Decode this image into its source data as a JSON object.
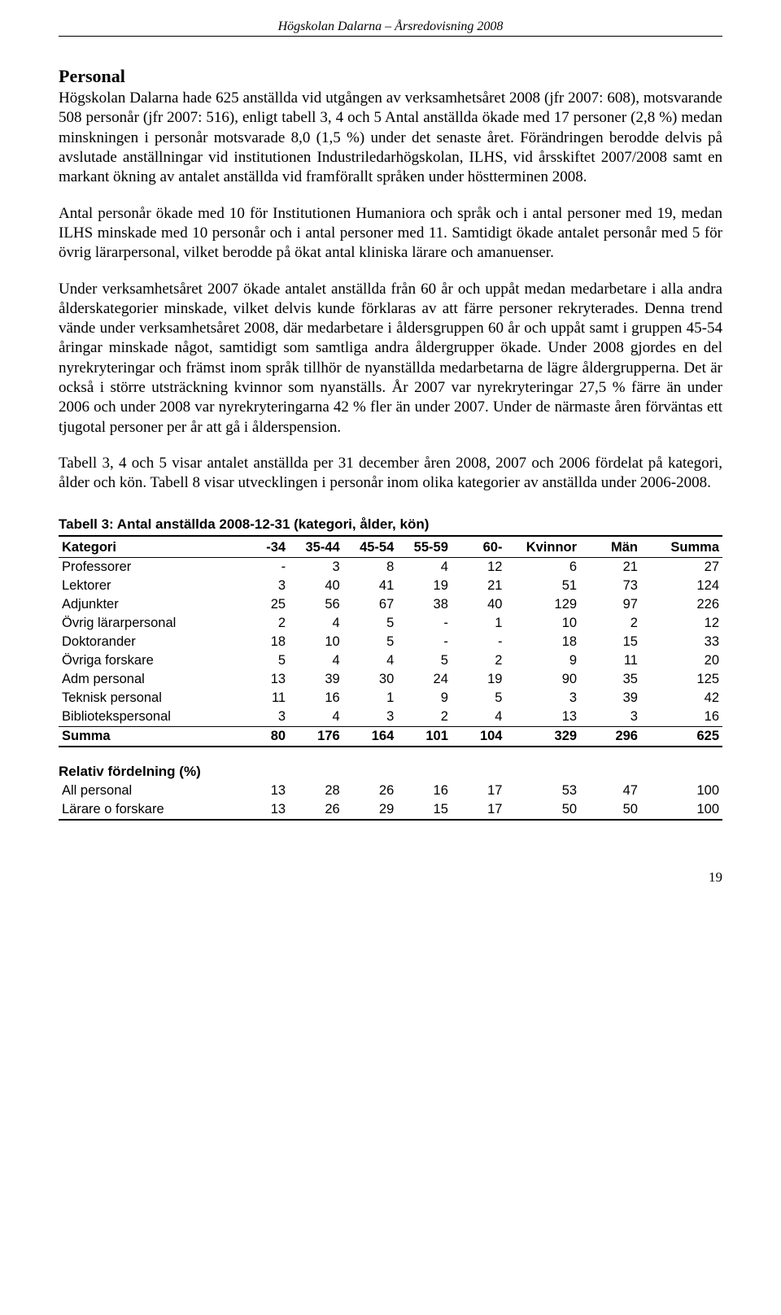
{
  "header": {
    "running": "Högskolan Dalarna – Årsredovisning 2008"
  },
  "section": {
    "heading": "Personal",
    "para1": "Högskolan Dalarna hade 625 anställda vid utgången av verksamhetsåret 2008 (jfr 2007: 608), motsvarande 508 personår (jfr 2007: 516), enligt tabell 3, 4 och 5 Antal anställda ökade med 17 personer (2,8 %) medan minskningen i personår motsvarade 8,0 (1,5 %) under det senaste året. Förändringen berodde delvis på avslutade anställningar vid institutionen Industriledarhögskolan, ILHS, vid årsskiftet 2007/2008 samt en markant ökning av antalet anställda vid framförallt språken under höstterminen 2008.",
    "para2": "Antal personår ökade med 10 för Institutionen Humaniora och språk och i antal personer med 19, medan ILHS minskade med 10 personår och i antal personer med 11. Samtidigt ökade antalet personår med 5 för övrig lärarpersonal, vilket berodde på ökat antal kliniska lärare och amanuenser.",
    "para3": "Under verksamhetsåret 2007 ökade antalet anställda från 60 år och uppåt medan medarbetare i alla andra ålderskategorier minskade, vilket delvis kunde förklaras av att färre personer rekryterades. Denna trend vände under verksamhetsåret 2008, där medarbetare i åldersgruppen 60 år och uppåt samt i gruppen 45-54 åringar minskade något, samtidigt som samtliga andra åldergrupper ökade. Under 2008 gjordes en del nyrekryteringar och främst inom språk tillhör de nyanställda medarbetarna de lägre åldergrupperna. Det är också i större utsträckning kvinnor som nyanställs. År 2007 var nyrekryteringar 27,5 % färre än under 2006 och under 2008 var nyrekryteringarna 42 % fler än under 2007. Under de närmaste åren förväntas ett tjugotal personer per år att gå i ålderspension.",
    "para4": "Tabell 3, 4 och 5 visar antalet anställda per 31 december åren 2008, 2007 och 2006 fördelat på kategori, ålder och kön. Tabell 8 visar utvecklingen i personår inom olika kategorier av anställda under 2006-2008."
  },
  "table3": {
    "title": "Tabell 3: Antal anställda 2008-12-31 (kategori, ålder, kön)",
    "columns": [
      "Kategori",
      "-34",
      "35-44",
      "45-54",
      "55-59",
      "60-",
      "Kvinnor",
      "Män",
      "Summa"
    ],
    "rows": [
      [
        "Professorer",
        "-",
        "3",
        "8",
        "4",
        "12",
        "6",
        "21",
        "27"
      ],
      [
        "Lektorer",
        "3",
        "40",
        "41",
        "19",
        "21",
        "51",
        "73",
        "124"
      ],
      [
        "Adjunkter",
        "25",
        "56",
        "67",
        "38",
        "40",
        "129",
        "97",
        "226"
      ],
      [
        "Övrig lärarpersonal",
        "2",
        "4",
        "5",
        "-",
        "1",
        "10",
        "2",
        "12"
      ],
      [
        "Doktorander",
        "18",
        "10",
        "5",
        "-",
        "-",
        "18",
        "15",
        "33"
      ],
      [
        "Övriga forskare",
        "5",
        "4",
        "4",
        "5",
        "2",
        "9",
        "11",
        "20"
      ],
      [
        "Adm personal",
        "13",
        "39",
        "30",
        "24",
        "19",
        "90",
        "35",
        "125"
      ],
      [
        "Teknisk personal",
        "11",
        "16",
        "1",
        "9",
        "5",
        "3",
        "39",
        "42"
      ],
      [
        "Bibliotekspersonal",
        "3",
        "4",
        "3",
        "2",
        "4",
        "13",
        "3",
        "16"
      ]
    ],
    "sum": [
      "Summa",
      "80",
      "176",
      "164",
      "101",
      "104",
      "329",
      "296",
      "625"
    ]
  },
  "relative": {
    "title": "Relativ fördelning (%)",
    "rows": [
      [
        "All personal",
        "13",
        "28",
        "26",
        "16",
        "17",
        "53",
        "47",
        "100"
      ],
      [
        "Lärare o forskare",
        "13",
        "26",
        "29",
        "15",
        "17",
        "50",
        "50",
        "100"
      ]
    ]
  },
  "pagenum": "19",
  "style": {
    "background_color": "#ffffff",
    "text_color": "#000000",
    "table_font": "Arial",
    "body_font": "Garamond",
    "body_fontsize_pt": 14,
    "table_fontsize_pt": 12,
    "border_color": "#000000"
  }
}
